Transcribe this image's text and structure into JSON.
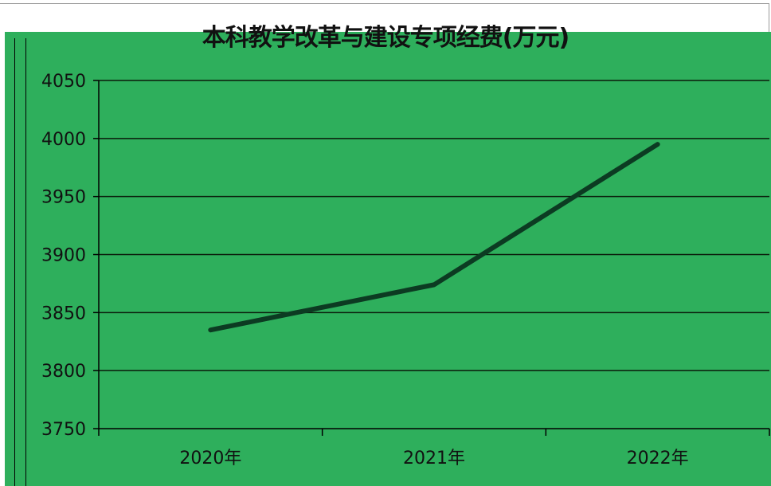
{
  "chart_data": {
    "type": "line",
    "title": "本科教学改革与建设专项经费(万元)",
    "categories": [
      "2020年",
      "2021年",
      "2022年"
    ],
    "series": [
      {
        "values": [
          3835,
          3874,
          3995
        ]
      }
    ],
    "ylim": [
      3750,
      4050
    ],
    "yticks": [
      3750,
      3800,
      3850,
      3900,
      3950,
      4000,
      4050
    ],
    "grid": true,
    "legend": "none",
    "colors": {
      "plot_background": "#2eaf5c",
      "line": "#0c3b22",
      "grid": "#0a1a0a",
      "text": "#111111"
    }
  }
}
